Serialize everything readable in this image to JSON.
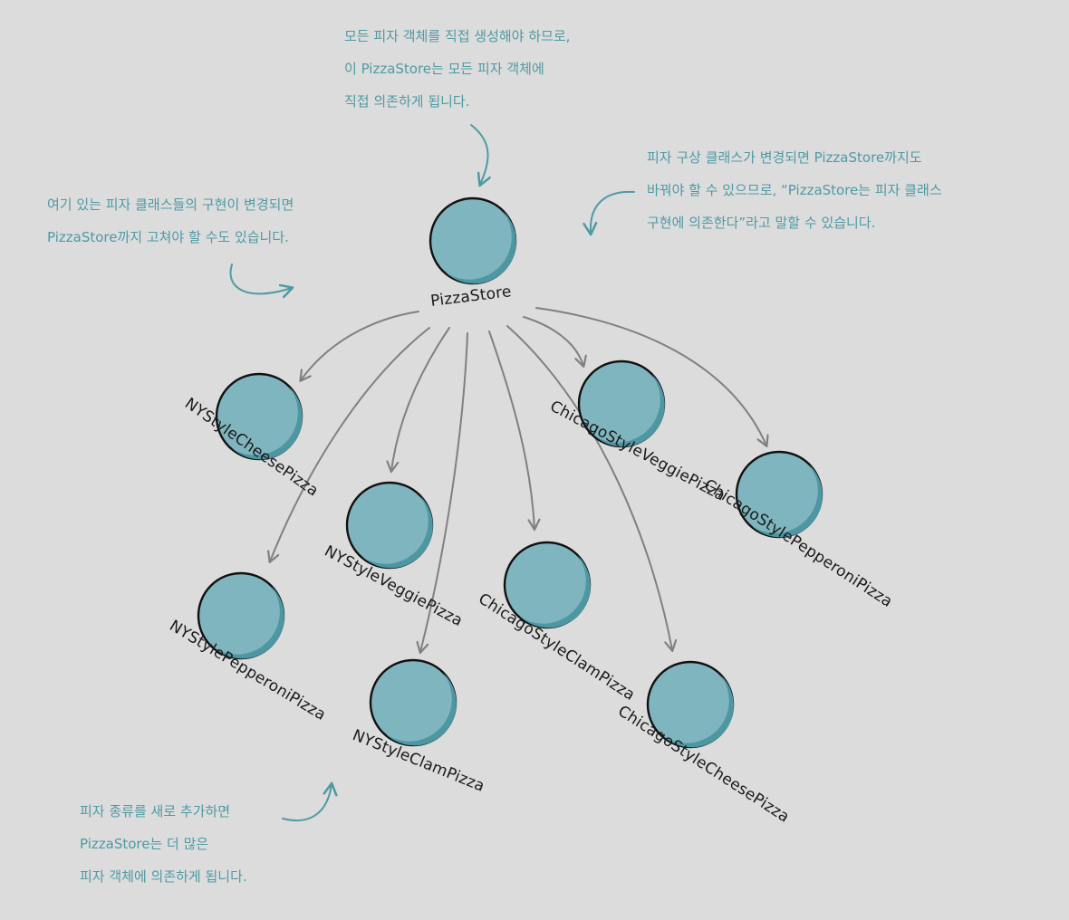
{
  "colors": {
    "background": "#dcdcdc",
    "node_fill": "#7fb5bf",
    "node_shadow": "#4d97a3",
    "node_outline": "#111111",
    "arrow": "#808080",
    "annotation": "#4e9aa3"
  },
  "diagram": {
    "root": {
      "id": "pizzastore",
      "label": "PizzaStore"
    },
    "nodes": [
      {
        "id": "ny-cheese",
        "label": "NYStyleCheesePizza"
      },
      {
        "id": "ny-veggie",
        "label": "NYStyleVeggiePizza"
      },
      {
        "id": "ny-pepperoni",
        "label": "NYStylePepperoniPizza"
      },
      {
        "id": "ny-clam",
        "label": "NYStyleClamPizza"
      },
      {
        "id": "chicago-veggie",
        "label": "ChicagoStyleVeggiePizza"
      },
      {
        "id": "chicago-clam",
        "label": "ChicagoStyleClamPizza"
      },
      {
        "id": "chicago-pepperoni",
        "label": "ChicagoStylePepperoniPizza"
      },
      {
        "id": "chicago-cheese",
        "label": "ChicagoStyleCheesePizza"
      }
    ]
  },
  "annotations": {
    "top": [
      "모든 피자 객체를 직접 생성해야 하므로,",
      "이 PizzaStore는 모든 피자 객체에",
      "직접 의존하게 됩니다."
    ],
    "left": [
      "여기 있는 피자 클래스들의 구현이 변경되면",
      "PizzaStore까지 고쳐야 할 수도 있습니다."
    ],
    "right": [
      "피자 구상 클래스가 변경되면 PizzaStore까지도",
      "바꿔야 할 수 있으므로, “PizzaStore는 피자 클래스",
      "구현에 의존한다”라고 말할 수 있습니다."
    ],
    "bottom": [
      "피자 종류를 새로 추가하면",
      "PizzaStore는 더 많은",
      "피자 객체에 의존하게 됩니다."
    ]
  }
}
